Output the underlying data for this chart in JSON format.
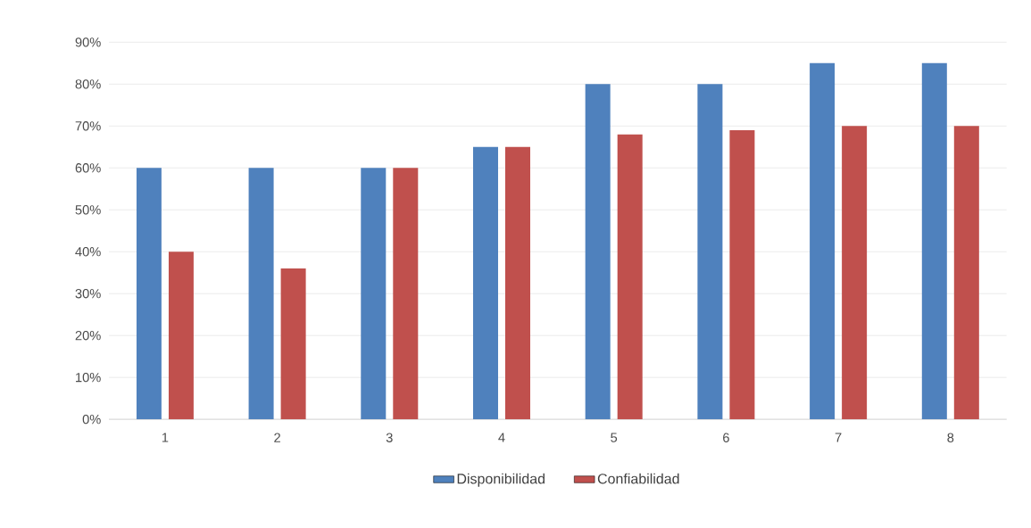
{
  "chart_data": {
    "type": "bar",
    "categories": [
      "1",
      "2",
      "3",
      "4",
      "5",
      "6",
      "7",
      "8"
    ],
    "series": [
      {
        "name": "Disponibilidad",
        "color": "#4f81bd",
        "values": [
          60,
          60,
          60,
          65,
          80,
          80,
          85,
          85
        ]
      },
      {
        "name": "Confiabilidad",
        "color": "#c0504d",
        "values": [
          40,
          36,
          60,
          65,
          68,
          69,
          70,
          70
        ]
      }
    ],
    "ylim": [
      0,
      90
    ],
    "yticks": [
      {
        "value": 0,
        "label": "0%"
      },
      {
        "value": 10,
        "label": "10%"
      },
      {
        "value": 20,
        "label": "20%"
      },
      {
        "value": 30,
        "label": "30%"
      },
      {
        "value": 40,
        "label": "40%"
      },
      {
        "value": 50,
        "label": "50%"
      },
      {
        "value": 60,
        "label": "60%"
      },
      {
        "value": 70,
        "label": "70%"
      },
      {
        "value": 80,
        "label": "80%"
      },
      {
        "value": 90,
        "label": "90%"
      }
    ],
    "grid": "y",
    "legend": "bottom"
  }
}
